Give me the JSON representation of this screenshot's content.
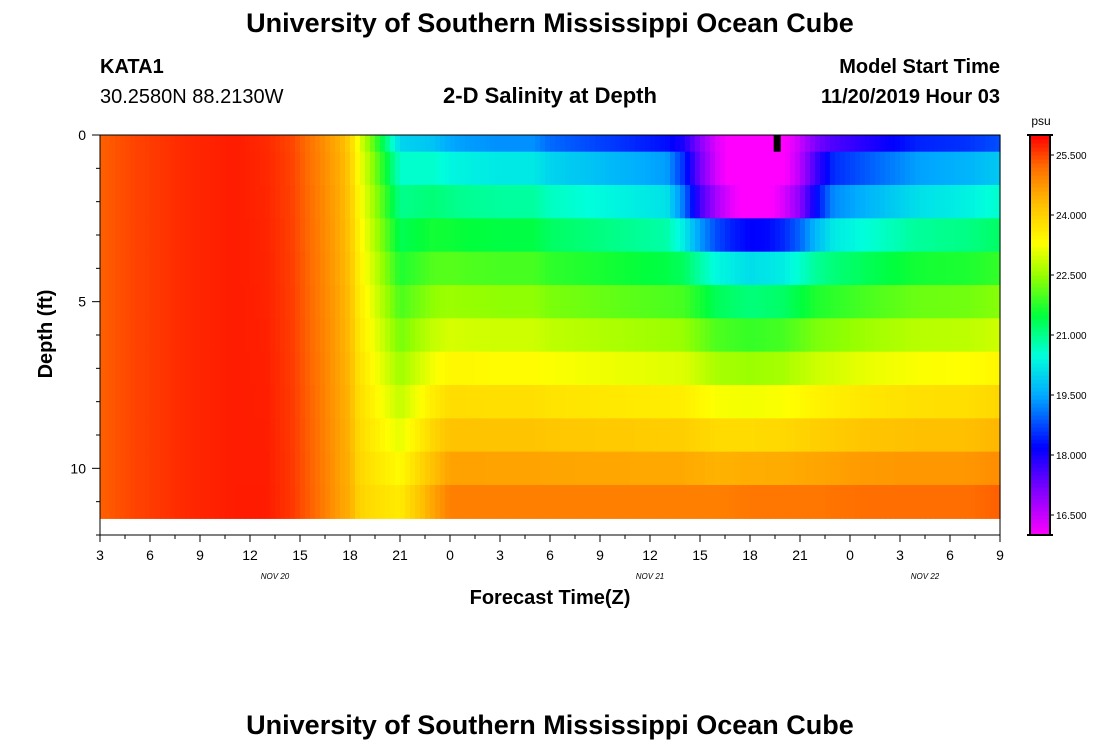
{
  "page": {
    "title_top": "University of Southern Mississippi Ocean Cube",
    "title_bottom": "University of Southern Mississippi Ocean Cube",
    "station_id": "KATA1",
    "coordinates": "30.2580N 88.2130W",
    "model_label": "Model Start Time",
    "model_time": "11/20/2019 Hour 03",
    "subtitle": "2-D Salinity at Depth"
  },
  "chart_data": {
    "type": "heatmap",
    "title": "2-D Salinity at Depth",
    "xlabel": "Forecast Time(Z)",
    "ylabel": "Depth (ft)",
    "x_range": [
      0,
      54
    ],
    "y_range": [
      0,
      12
    ],
    "x_ticks": [
      {
        "t": 0,
        "label": "3"
      },
      {
        "t": 3,
        "label": "6"
      },
      {
        "t": 6,
        "label": "9"
      },
      {
        "t": 9,
        "label": "12"
      },
      {
        "t": 12,
        "label": "15"
      },
      {
        "t": 15,
        "label": "18"
      },
      {
        "t": 18,
        "label": "21"
      },
      {
        "t": 21,
        "label": "0"
      },
      {
        "t": 24,
        "label": "3"
      },
      {
        "t": 27,
        "label": "6"
      },
      {
        "t": 30,
        "label": "9"
      },
      {
        "t": 33,
        "label": "12"
      },
      {
        "t": 36,
        "label": "15"
      },
      {
        "t": 39,
        "label": "18"
      },
      {
        "t": 42,
        "label": "21"
      },
      {
        "t": 45,
        "label": "0"
      },
      {
        "t": 48,
        "label": "3"
      },
      {
        "t": 51,
        "label": "6"
      },
      {
        "t": 54,
        "label": "9"
      }
    ],
    "date_labels": [
      {
        "t": 10.5,
        "label": "NOV 20"
      },
      {
        "t": 33,
        "label": "NOV 21"
      },
      {
        "t": 49.5,
        "label": "NOV 22"
      }
    ],
    "y_ticks": [
      {
        "d": 0,
        "label": "0"
      },
      {
        "d": 5,
        "label": "5"
      },
      {
        "d": 10,
        "label": "10"
      }
    ],
    "layers": [
      0,
      1,
      2,
      3,
      4,
      5,
      6,
      7,
      8,
      9,
      10,
      11
    ],
    "colorbar": {
      "unit": "psu",
      "min": 16.0,
      "max": 26.0,
      "ticks": [
        {
          "v": 16.5,
          "label": "16.500"
        },
        {
          "v": 18.0,
          "label": "18.000"
        },
        {
          "v": 19.5,
          "label": "19.500"
        },
        {
          "v": 21.0,
          "label": "21.000"
        },
        {
          "v": 22.5,
          "label": "22.500"
        },
        {
          "v": 24.0,
          "label": "24.000"
        },
        {
          "v": 25.5,
          "label": "25.500"
        }
      ]
    },
    "profile_keys": {
      "hours": [
        0,
        2,
        5,
        8,
        10,
        11.5,
        13,
        14.5,
        15,
        15.5,
        16.5,
        18,
        20,
        21,
        22,
        24,
        26,
        27,
        29,
        32,
        35,
        37,
        39,
        41,
        43,
        46,
        49,
        52,
        54
      ],
      "surface": [
        25.3,
        25.5,
        25.7,
        25.8,
        25.7,
        25.5,
        25.0,
        24.4,
        24.0,
        23.2,
        22.0,
        20.0,
        19.8,
        19.5,
        19.4,
        19.3,
        19.3,
        19.0,
        18.8,
        18.5,
        18.2,
        16.8,
        16.2,
        16.5,
        17.5,
        18.0,
        18.5,
        18.6,
        18.8
      ],
      "bottom": [
        25.3,
        25.5,
        25.7,
        25.8,
        25.8,
        25.6,
        25.2,
        24.6,
        24.5,
        24.0,
        23.8,
        23.6,
        24.6,
        25.0,
        25.0,
        25.0,
        25.0,
        25.0,
        25.0,
        25.0,
        25.0,
        25.0,
        25.1,
        25.1,
        25.1,
        25.2,
        25.2,
        25.2,
        25.3
      ]
    },
    "low_salinity_core": {
      "hours": [
        0,
        34,
        36,
        38,
        40,
        42,
        44,
        54
      ],
      "drop": [
        0,
        0,
        2.0,
        2.8,
        3.0,
        2.3,
        0.5,
        0
      ]
    },
    "missing_data_marker": {
      "t": 40.6,
      "depth": 0
    }
  }
}
